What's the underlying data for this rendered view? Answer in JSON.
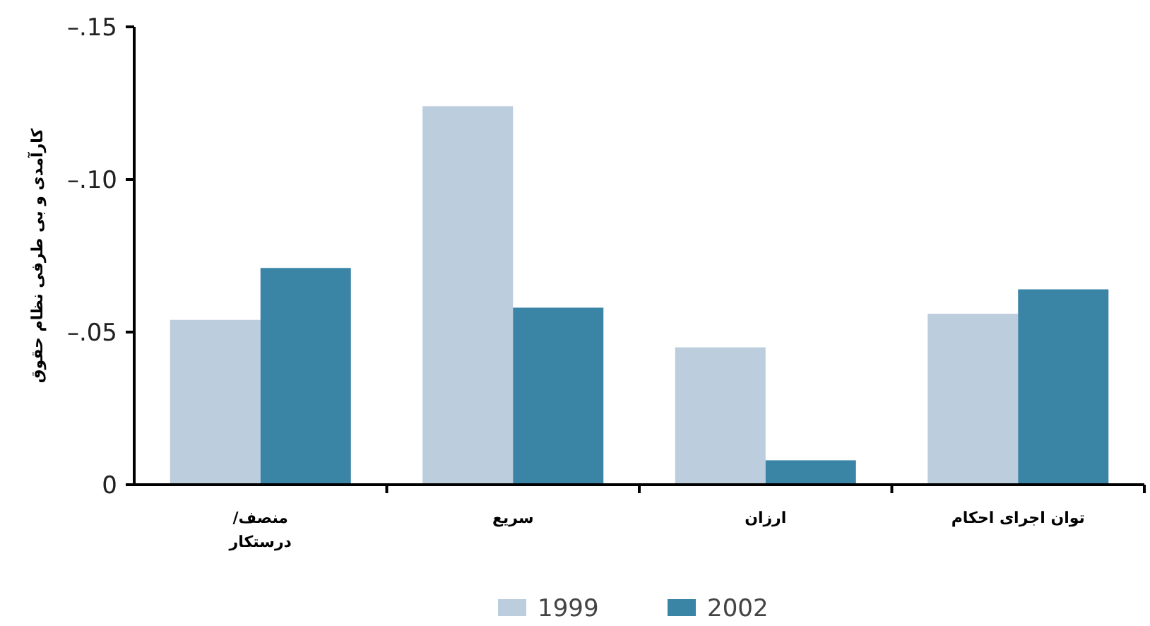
{
  "chart_data": {
    "type": "bar",
    "ylabel": "کارآمدی و بی طرفی نظام حقوق",
    "categories": [
      "منصف/\nدرستکار",
      "سریع",
      "ارزان",
      "توان اجرای احکام"
    ],
    "series": [
      {
        "name": "1999",
        "color": "#bccddd",
        "values": [
          -0.054,
          -0.124,
          -0.045,
          -0.056
        ]
      },
      {
        "name": "2002",
        "color": "#3a84a6",
        "values": [
          -0.071,
          -0.058,
          -0.008,
          -0.064
        ]
      }
    ],
    "ylim": [
      0,
      -0.15
    ],
    "yticks": [
      0,
      {
        "value": -0.05,
        "label": "–.05"
      },
      {
        "value": -0.1,
        "label": "–.10"
      },
      {
        "value": -0.15,
        "label": "–.15"
      }
    ],
    "grid": false,
    "legend": "bottom"
  }
}
